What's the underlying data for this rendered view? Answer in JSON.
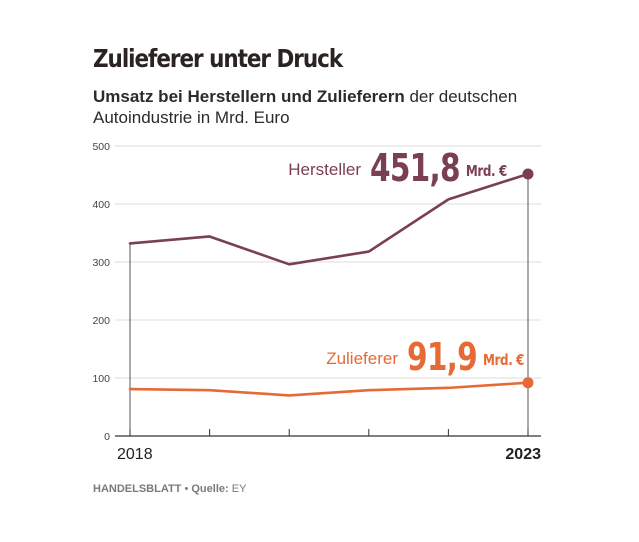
{
  "chart_data": {
    "type": "line",
    "title": "Zulieferer unter Druck",
    "subtitle_bold": "Umsatz bei Herstellern und Zulieferern",
    "subtitle_rest": " der deutschen Autoindustrie in Mrd. Euro",
    "x": [
      2018,
      2019,
      2020,
      2021,
      2022,
      2023
    ],
    "x_tick_labels": [
      "2018",
      "",
      "",
      "",
      "",
      "2023"
    ],
    "ylim": [
      0,
      500
    ],
    "y_ticks": [
      0,
      100,
      200,
      300,
      400,
      500
    ],
    "grid": true,
    "series": [
      {
        "name": "Hersteller",
        "color": "#7b3f55",
        "values": [
          332,
          344,
          296,
          318,
          408,
          451.8
        ],
        "end_value_label": "451,8",
        "unit_label": "Mrd. €"
      },
      {
        "name": "Zulieferer",
        "color": "#e66a35",
        "values": [
          81,
          79,
          70,
          79,
          83,
          91.9
        ],
        "end_value_label": "91,9",
        "unit_label": "Mrd. €"
      }
    ]
  },
  "source": {
    "publisher": "HANDELSBLATT",
    "separator": " • ",
    "label": "Quelle:",
    "name": " EY"
  }
}
